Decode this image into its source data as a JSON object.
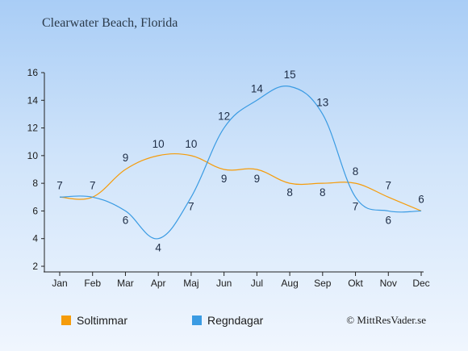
{
  "chart_data": {
    "type": "line",
    "title": "Clearwater Beach, Florida",
    "categories": [
      "Jan",
      "Feb",
      "Mar",
      "Apr",
      "Maj",
      "Jun",
      "Jul",
      "Aug",
      "Sep",
      "Okt",
      "Nov",
      "Dec"
    ],
    "series": [
      {
        "name": "Soltimmar",
        "color": "#f59c0b",
        "values": [
          7,
          7,
          9,
          10,
          10,
          9,
          9,
          8,
          8,
          8,
          7,
          6
        ]
      },
      {
        "name": "Regndagar",
        "color": "#3a9be3",
        "values": [
          7,
          7,
          6,
          4,
          7,
          12,
          14,
          15,
          13,
          7,
          6,
          6
        ]
      }
    ],
    "ylim": [
      2,
      16
    ],
    "yticks": [
      2,
      4,
      6,
      8,
      10,
      12,
      14,
      16
    ],
    "xlabel": "",
    "ylabel": "",
    "grid": false,
    "legend_position": "bottom-left"
  },
  "footer": {
    "copyright": "© MittResVader.se"
  },
  "colors": {
    "axis": "#222222"
  }
}
